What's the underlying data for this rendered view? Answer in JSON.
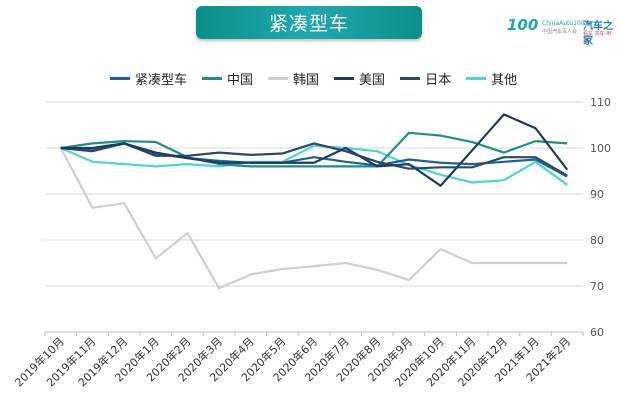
{
  "header": {
    "title": "紧凑型车"
  },
  "logo": {
    "mark": "100",
    "name": "ChinaAuto100",
    "sub": "中国汽车百人会",
    "brand": "汽车之家",
    "brand_sub": "看车 买车 用车"
  },
  "chart_data": {
    "type": "line",
    "title": "紧凑型车",
    "xlabel": "",
    "ylabel": "",
    "ylim": [
      60,
      110
    ],
    "yticks": [
      60,
      70,
      80,
      90,
      100,
      110
    ],
    "y_axis_side": "right",
    "grid": true,
    "legend_position": "top",
    "categories": [
      "2019年10月",
      "2019年11月",
      "2019年12月",
      "2020年1月",
      "2020年2月",
      "2020年3月",
      "2020年4月",
      "2020年5月",
      "2020年6月",
      "2020年7月",
      "2020年8月",
      "2020年9月",
      "2020年10月",
      "2020年11月",
      "2020年12月",
      "2021年1月",
      "2021年2月"
    ],
    "series": [
      {
        "name": "紧凑型车",
        "color": "#1f5fa0",
        "values": [
          100,
          99.5,
          101.0,
          98.8,
          97.8,
          97.2,
          96.8,
          96.8,
          98.0,
          97.0,
          96.2,
          97.5,
          96.8,
          96.5,
          97.0,
          97.5,
          93.8
        ]
      },
      {
        "name": "中国",
        "color": "#1f8f7f",
        "values": [
          100,
          101.0,
          101.5,
          101.3,
          98.0,
          96.5,
          96.0,
          96.0,
          96.0,
          96.0,
          96.0,
          103.3,
          102.7,
          101.3,
          99.0,
          101.5,
          101.0
        ]
      },
      {
        "name": "韩国",
        "color": "#cfcfcf",
        "values": [
          100,
          87.0,
          88.0,
          76.0,
          81.5,
          69.5,
          72.5,
          73.7,
          74.3,
          75.0,
          73.5,
          71.3,
          78.0,
          75.0,
          75.0,
          75.0,
          75.0
        ]
      },
      {
        "name": "美国",
        "color": "#1f3a66",
        "values": [
          100,
          100.0,
          101.0,
          99.0,
          97.8,
          96.8,
          96.8,
          96.8,
          96.8,
          100.0,
          96.0,
          96.5,
          91.8,
          99.5,
          107.3,
          104.3,
          95.3
        ]
      },
      {
        "name": "日本",
        "color": "#2a4a6a",
        "values": [
          100,
          99.3,
          101.0,
          98.3,
          98.3,
          99.0,
          98.5,
          98.8,
          101.0,
          99.3,
          97.0,
          95.5,
          95.8,
          95.8,
          98.0,
          98.0,
          94.0
        ]
      },
      {
        "name": "其他",
        "color": "#4fd4d4",
        "values": [
          100,
          97.0,
          96.5,
          96.0,
          96.5,
          96.0,
          97.0,
          97.0,
          100.5,
          100.0,
          99.3,
          96.3,
          94.2,
          92.5,
          93.0,
          97.0,
          92.0
        ]
      }
    ]
  }
}
